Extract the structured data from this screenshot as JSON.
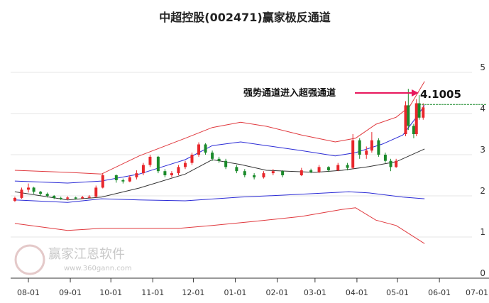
{
  "chart_data": {
    "type": "candlestick",
    "title": "中超控股(002471)赢家极反通道",
    "xlabel": "",
    "ylabel": "",
    "ylim": [
      0,
      5
    ],
    "y_ticks": [
      "0",
      "1",
      "2",
      "3",
      "4",
      "5"
    ],
    "x_ticks": [
      "08-01",
      "09-01",
      "10-01",
      "11-01",
      "12-01",
      "01-01",
      "02-01",
      "03-01",
      "04-01",
      "05-01",
      "06-01",
      "07-01"
    ],
    "grid": true,
    "colors": {
      "up": "#e8262b",
      "down": "#1a8a2a",
      "upper_outer": "#e0393e",
      "upper_inner": "#2b2bd6",
      "middle": "#333333",
      "lower_inner": "#2b2bd6",
      "lower_outer": "#e0393e",
      "annotation_arrow": "#e8175d",
      "price_line": "#1a8a2a"
    },
    "candles_columns": [
      "date",
      "open",
      "close",
      "high",
      "low"
    ],
    "candles": [
      [
        "07-22",
        1.88,
        1.95,
        1.98,
        1.85
      ],
      [
        "07-27",
        1.95,
        2.15,
        2.2,
        1.93
      ],
      [
        "08-01",
        2.15,
        2.2,
        2.3,
        2.08
      ],
      [
        "08-05",
        2.2,
        2.1,
        2.22,
        2.05
      ],
      [
        "08-10",
        2.1,
        2.05,
        2.12,
        2.0
      ],
      [
        "08-15",
        2.05,
        2.0,
        2.08,
        1.96
      ],
      [
        "08-20",
        2.0,
        1.95,
        2.02,
        1.92
      ],
      [
        "08-25",
        1.95,
        1.93,
        1.98,
        1.9
      ],
      [
        "08-30",
        1.93,
        1.96,
        1.99,
        1.9
      ],
      [
        "09-05",
        1.96,
        1.94,
        1.98,
        1.91
      ],
      [
        "09-10",
        1.94,
        1.97,
        2.0,
        1.92
      ],
      [
        "09-15",
        1.97,
        1.98,
        2.02,
        1.95
      ],
      [
        "09-20",
        1.98,
        2.2,
        2.25,
        1.96
      ],
      [
        "09-25",
        2.2,
        2.5,
        2.55,
        2.18
      ],
      [
        "10-05",
        2.5,
        2.38,
        2.52,
        2.32
      ],
      [
        "10-10",
        2.38,
        2.35,
        2.42,
        2.3
      ],
      [
        "10-15",
        2.35,
        2.45,
        2.5,
        2.33
      ],
      [
        "10-20",
        2.45,
        2.55,
        2.62,
        2.4
      ],
      [
        "10-25",
        2.55,
        2.75,
        2.8,
        2.5
      ],
      [
        "10-30",
        2.75,
        2.95,
        3.0,
        2.7
      ],
      [
        "11-05",
        2.95,
        2.6,
        2.97,
        2.55
      ],
      [
        "11-10",
        2.6,
        2.5,
        2.65,
        2.45
      ],
      [
        "11-15",
        2.5,
        2.55,
        2.6,
        2.45
      ],
      [
        "11-20",
        2.55,
        2.7,
        2.75,
        2.5
      ],
      [
        "11-25",
        2.7,
        2.8,
        2.85,
        2.65
      ],
      [
        "11-30",
        2.8,
        3.0,
        3.05,
        2.75
      ],
      [
        "12-05",
        3.0,
        3.25,
        3.3,
        2.95
      ],
      [
        "12-10",
        3.25,
        3.05,
        3.28,
        3.0
      ],
      [
        "12-15",
        3.05,
        2.9,
        3.1,
        2.85
      ],
      [
        "12-20",
        2.9,
        2.85,
        2.95,
        2.8
      ],
      [
        "12-25",
        2.85,
        2.7,
        2.9,
        2.65
      ],
      [
        "01-02",
        2.7,
        2.6,
        2.75,
        2.55
      ],
      [
        "01-08",
        2.6,
        2.5,
        2.65,
        2.45
      ],
      [
        "01-15",
        2.5,
        2.45,
        2.55,
        2.4
      ],
      [
        "01-22",
        2.45,
        2.55,
        2.6,
        2.42
      ],
      [
        "01-29",
        2.55,
        2.6,
        2.65,
        2.5
      ],
      [
        "02-05",
        2.6,
        2.5,
        2.62,
        2.45
      ],
      [
        "02-19",
        2.5,
        2.62,
        2.68,
        2.48
      ],
      [
        "02-26",
        2.62,
        2.58,
        2.66,
        2.55
      ],
      [
        "03-04",
        2.58,
        2.7,
        2.75,
        2.55
      ],
      [
        "03-11",
        2.7,
        2.62,
        2.72,
        2.58
      ],
      [
        "03-18",
        2.62,
        2.75,
        2.8,
        2.6
      ],
      [
        "03-25",
        2.75,
        2.68,
        2.8,
        2.62
      ],
      [
        "03-29",
        2.68,
        3.35,
        3.5,
        2.65
      ],
      [
        "04-03",
        3.35,
        3.0,
        3.4,
        2.9
      ],
      [
        "04-08",
        3.0,
        3.1,
        3.2,
        2.9
      ],
      [
        "04-12",
        3.1,
        3.35,
        3.55,
        3.05
      ],
      [
        "04-17",
        3.35,
        3.0,
        3.4,
        2.95
      ],
      [
        "04-22",
        3.0,
        2.85,
        3.05,
        2.8
      ],
      [
        "04-26",
        2.85,
        2.7,
        2.9,
        2.6
      ],
      [
        "04-30",
        2.7,
        2.85,
        2.9,
        2.68
      ],
      [
        "05-07",
        3.5,
        4.2,
        4.3,
        3.45
      ],
      [
        "05-09",
        4.2,
        3.7,
        4.6,
        3.6
      ],
      [
        "05-13",
        3.7,
        3.5,
        3.75,
        3.4
      ],
      [
        "05-15",
        3.5,
        4.25,
        4.35,
        3.45
      ],
      [
        "05-17",
        4.25,
        3.9,
        4.45,
        3.85
      ],
      [
        "05-20",
        3.9,
        4.15,
        4.25,
        3.85
      ]
    ],
    "bands": {
      "upper_outer": [
        [
          "07-22",
          2.62
        ],
        [
          "08-30",
          2.57
        ],
        [
          "09-24",
          2.53
        ],
        [
          "10-22",
          2.97
        ],
        [
          "11-25",
          3.4
        ],
        [
          "12-15",
          3.66
        ],
        [
          "01-05",
          3.79
        ],
        [
          "01-24",
          3.69
        ],
        [
          "02-19",
          3.48
        ],
        [
          "03-16",
          3.31
        ],
        [
          "03-31",
          3.4
        ],
        [
          "04-15",
          3.74
        ],
        [
          "04-30",
          3.91
        ],
        [
          "05-10",
          4.17
        ],
        [
          "05-21",
          4.78
        ]
      ],
      "upper_inner": [
        [
          "07-22",
          2.36
        ],
        [
          "08-30",
          2.31
        ],
        [
          "09-24",
          2.36
        ],
        [
          "10-22",
          2.53
        ],
        [
          "11-25",
          2.88
        ],
        [
          "12-15",
          3.22
        ],
        [
          "01-05",
          3.31
        ],
        [
          "01-24",
          3.22
        ],
        [
          "02-19",
          3.1
        ],
        [
          "03-16",
          2.97
        ],
        [
          "03-31",
          3.05
        ],
        [
          "04-20",
          3.26
        ],
        [
          "05-05",
          3.48
        ],
        [
          "05-15",
          3.91
        ],
        [
          "05-21",
          4.2
        ]
      ],
      "middle": [
        [
          "07-22",
          2.1
        ],
        [
          "08-30",
          1.9
        ],
        [
          "09-24",
          1.97
        ],
        [
          "10-22",
          2.19
        ],
        [
          "11-25",
          2.53
        ],
        [
          "12-15",
          2.88
        ],
        [
          "01-05",
          2.76
        ],
        [
          "01-24",
          2.62
        ],
        [
          "03-01",
          2.57
        ],
        [
          "03-21",
          2.62
        ],
        [
          "04-10",
          2.71
        ],
        [
          "04-30",
          2.83
        ],
        [
          "05-21",
          3.14
        ]
      ],
      "lower_inner": [
        [
          "07-22",
          1.9
        ],
        [
          "08-30",
          1.84
        ],
        [
          "09-24",
          1.93
        ],
        [
          "10-22",
          1.9
        ],
        [
          "11-25",
          1.88
        ],
        [
          "01-05",
          1.97
        ],
        [
          "02-08",
          2.02
        ],
        [
          "03-26",
          2.1
        ],
        [
          "04-10",
          2.07
        ],
        [
          "05-05",
          1.97
        ],
        [
          "05-21",
          1.93
        ]
      ],
      "lower_outer": [
        [
          "07-22",
          1.33
        ],
        [
          "08-30",
          1.16
        ],
        [
          "09-24",
          1.21
        ],
        [
          "11-20",
          1.21
        ],
        [
          "12-15",
          1.28
        ],
        [
          "01-15",
          1.38
        ],
        [
          "02-19",
          1.5
        ],
        [
          "03-21",
          1.67
        ],
        [
          "03-31",
          1.71
        ],
        [
          "04-15",
          1.41
        ],
        [
          "04-30",
          1.28
        ],
        [
          "05-10",
          1.07
        ],
        [
          "05-21",
          0.84
        ]
      ]
    },
    "annotation": {
      "text": "强势通道进入超强通道",
      "value": "4.1005",
      "level": 4.22
    }
  },
  "watermark": {
    "brand": "赢家江恩软件",
    "url": "www.360gann.com"
  }
}
